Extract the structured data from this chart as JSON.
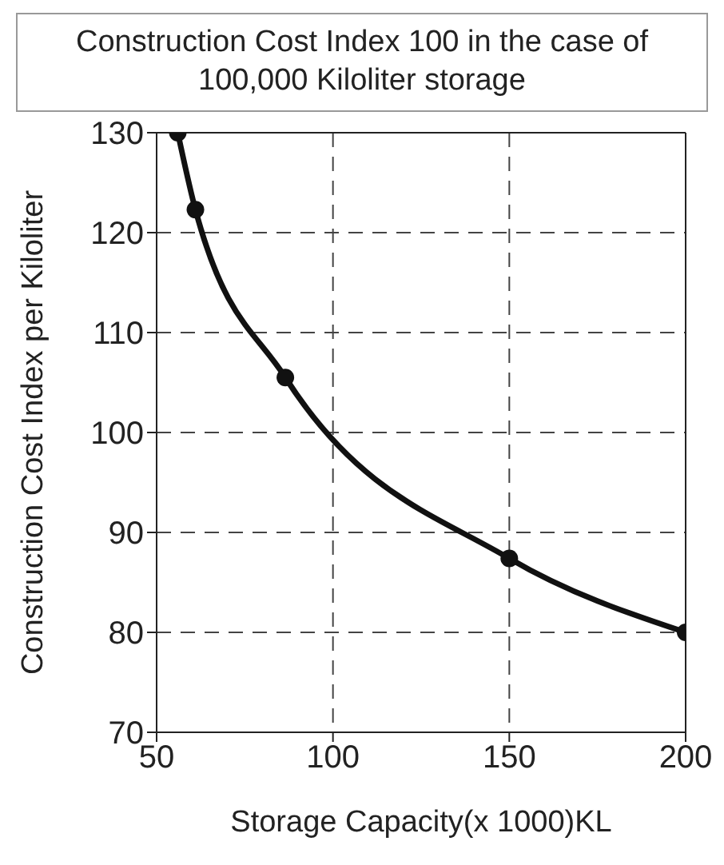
{
  "chart_data": {
    "type": "line",
    "title": "Construction Cost Index 100 in the case of 100,000 Kiloliter storage",
    "xlabel": "Storage Capacity(x 1000)KL",
    "ylabel": "Construction Cost Index per Kiloliter",
    "x": [
      56,
      61,
      86.5,
      150,
      200
    ],
    "series": [
      {
        "color": "#111111",
        "values": [
          130,
          122.3,
          105.5,
          87.4,
          80
        ]
      }
    ],
    "xlim": [
      50,
      200
    ],
    "xticks": [
      50,
      100,
      150,
      200
    ],
    "ylim": [
      70,
      130
    ],
    "yticks": [
      70,
      80,
      90,
      100,
      110,
      120,
      130
    ],
    "grid": true,
    "marker": "circle",
    "line_style": "solid",
    "legend": false
  }
}
